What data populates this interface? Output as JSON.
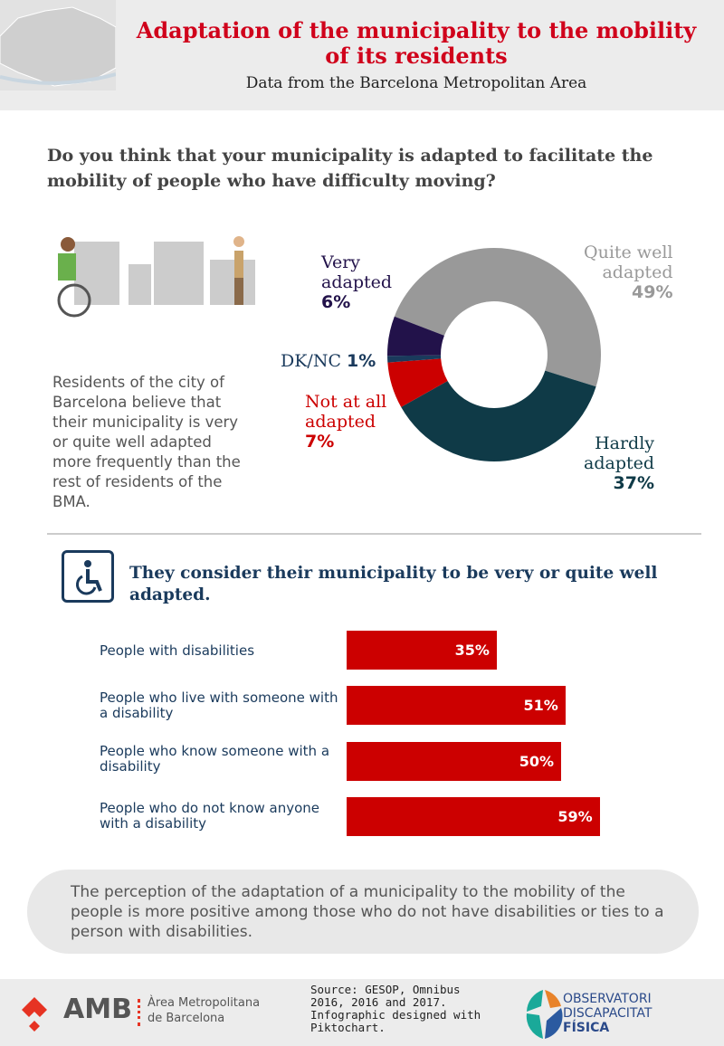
{
  "header": {
    "title": "Adaptation of the municipality to the mobility of its residents",
    "subtitle": "Data from the Barcelona Metropolitan Area"
  },
  "question": "Do you think that your municipality is adapted to facilitate the mobility of people who have difficulty moving?",
  "note": "Residents of the city of Barcelona believe that their municipality is very or quite well adapted more frequently than the rest of residents of the BMA.",
  "colors": {
    "quite": "#999999",
    "hardly": "#0f3a47",
    "notatall": "#cc0000",
    "dknc": "#1a3a5c",
    "very": "#22124a"
  },
  "chart_data": [
    {
      "type": "pie",
      "donut": true,
      "categories": [
        "Quite well adapted",
        "Hardly adapted",
        "Not at all adapted",
        "DK/NC",
        "Very adapted"
      ],
      "values": [
        49,
        37,
        7,
        1,
        6
      ],
      "labels": {
        "quite": [
          "Quite well",
          "adapted",
          "49%"
        ],
        "hardly": [
          "Hardly",
          "adapted",
          "37%"
        ],
        "notatall": [
          "Not at all",
          "adapted",
          "7%"
        ],
        "dknc": [
          "DK/NC",
          "1%"
        ],
        "very": [
          "Very",
          "adapted",
          "6%"
        ]
      }
    },
    {
      "type": "bar",
      "orientation": "horizontal",
      "title": "They consider their municipality to be very or quite well adapted.",
      "categories": [
        "People with disabilities",
        "People who live with someone with a disability",
        "People who know someone with a disability",
        "People who do not know anyone with a disability"
      ],
      "values": [
        35,
        51,
        50,
        59
      ],
      "value_labels": [
        "35%",
        "51%",
        "50%",
        "59%"
      ]
    }
  ],
  "conclusion": "The perception of the adaptation of a municipality to the mobility of the people is more positive among those who do not have disabilities or ties to a person with disabilities.",
  "footer": {
    "amb": "AMB",
    "amb_sub1": "Àrea Metropolitana",
    "amb_sub2": "de Barcelona",
    "source": "Source:  GESOP, Omnibus 2016, 2016 and 2017. Infographic designed with Piktochart.",
    "obs1": "OBSERVATORI",
    "obs2": "DISCAPACITAT",
    "obs3": "FÍSICA"
  }
}
